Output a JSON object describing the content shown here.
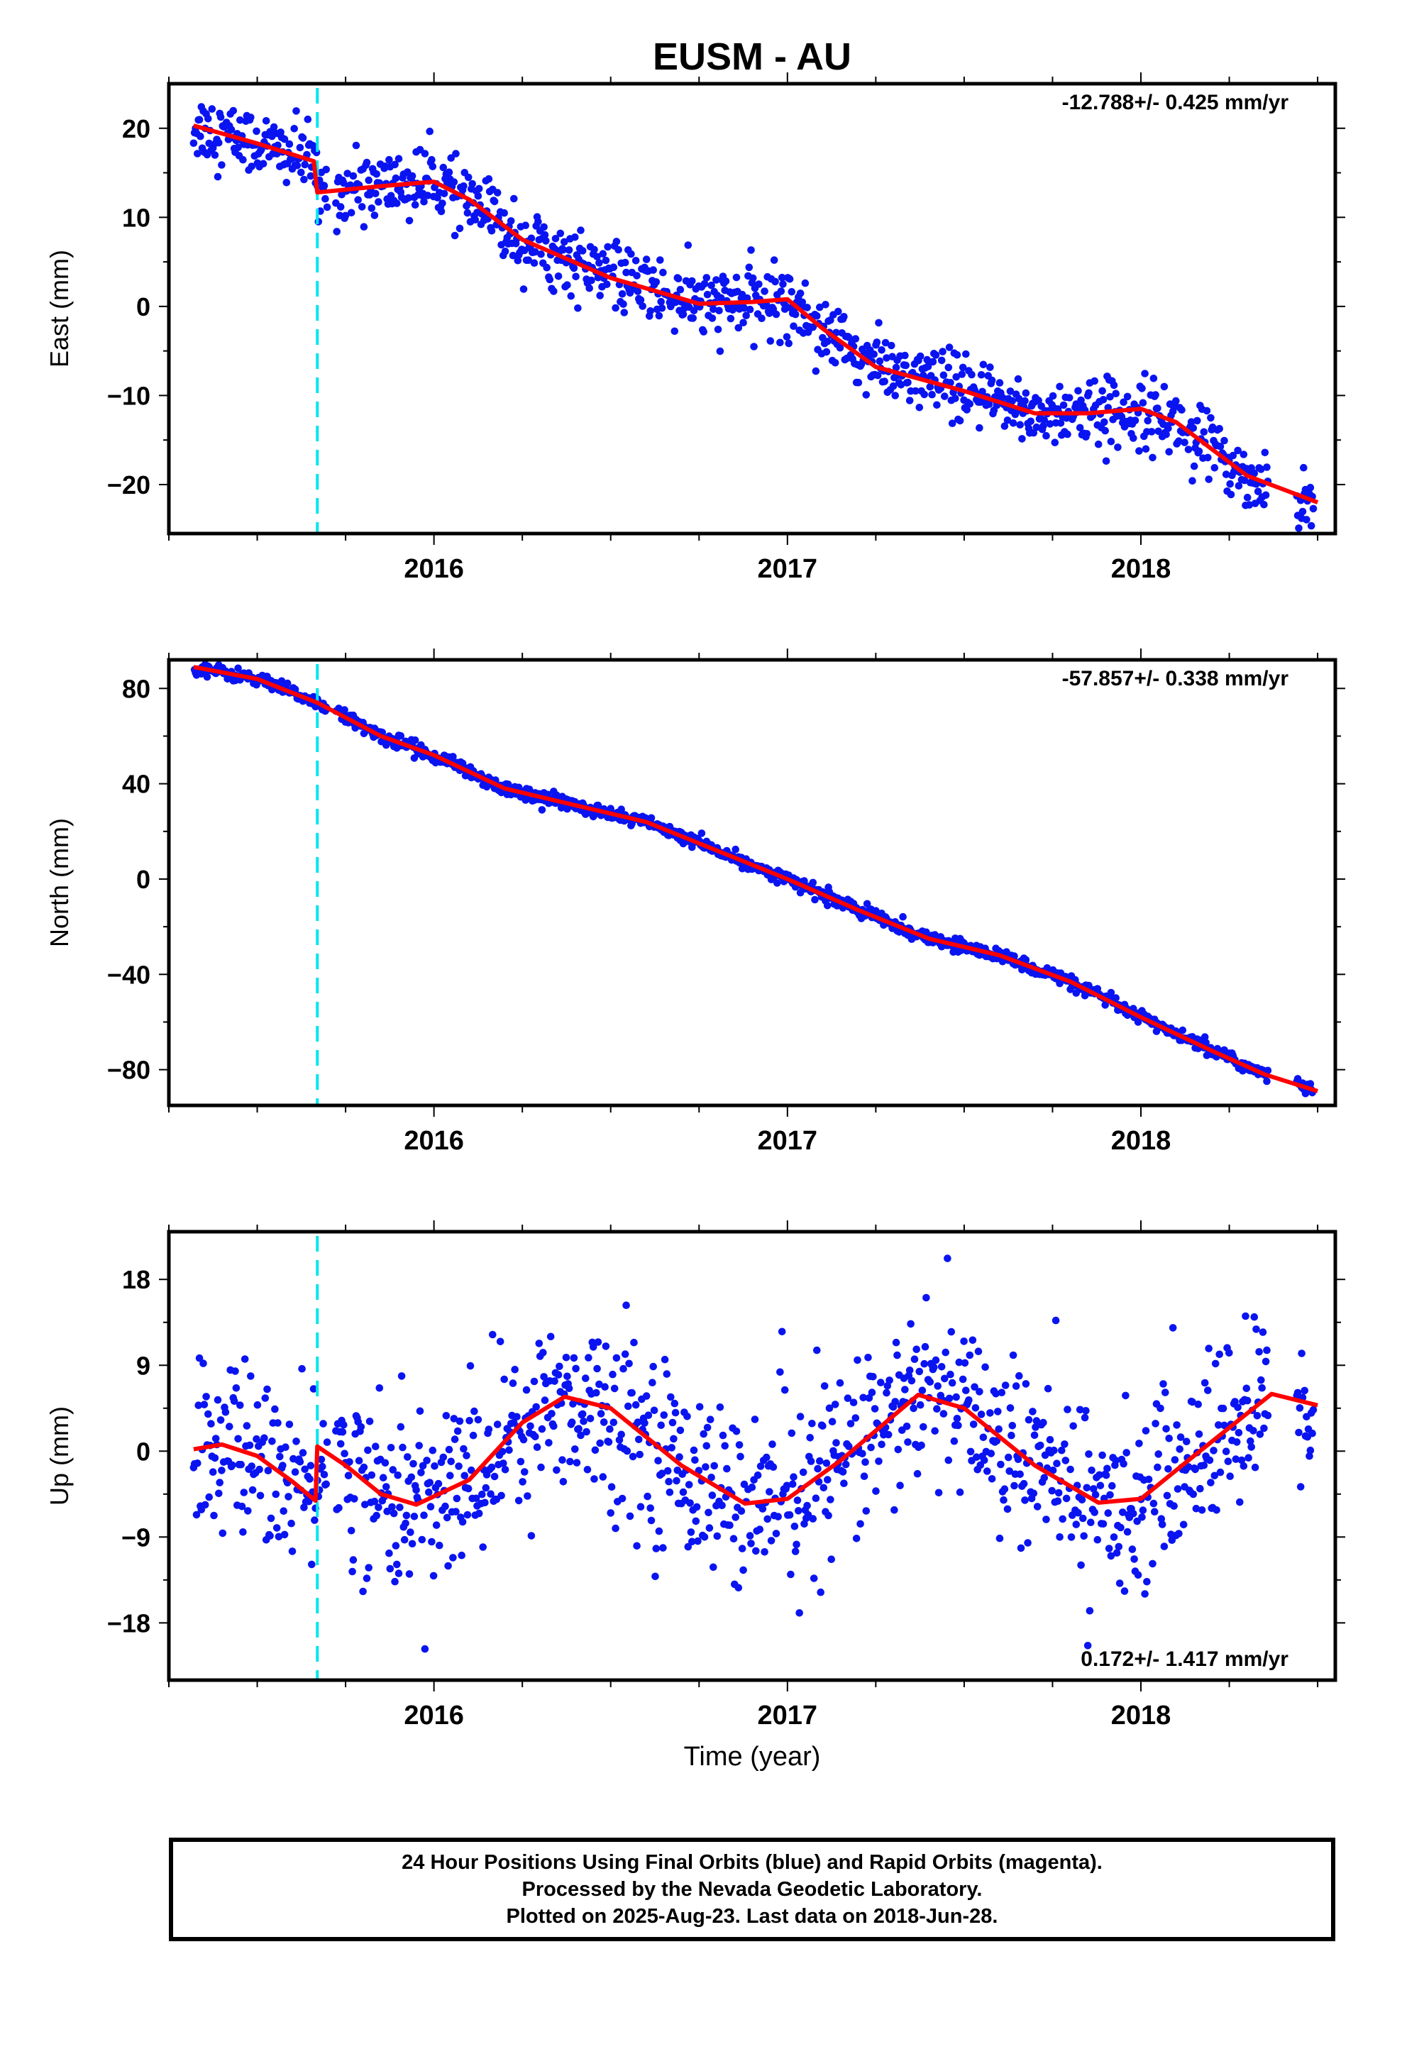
{
  "title": "EUSM - AU",
  "xlabel": "Time (year)",
  "caption": {
    "line1": "24 Hour Positions Using Final Orbits (blue) and Rapid Orbits (magenta).",
    "line2": "Processed by the Nevada Geodetic Laboratory.",
    "line3": "Plotted on 2025-Aug-23. Last data on 2018-Jun-28."
  },
  "colors": {
    "points": "#0a14f0",
    "model": "#ff0000",
    "event_line": "#00e5ee",
    "frame": "#000000"
  },
  "chart_data": [
    {
      "type": "scatter",
      "component": "east",
      "ylabel": "East (mm)",
      "rate_label": "-12.788+/- 0.425 mm/yr",
      "rate_position": "top-right",
      "xlim": [
        2015.25,
        2018.55
      ],
      "ylim": [
        -25.5,
        25
      ],
      "yticks": [
        -20,
        -10,
        0,
        10,
        20
      ],
      "ytick_labels": [
        "−20",
        "−10",
        "0",
        "10",
        "20"
      ],
      "xticks": [
        2016,
        2017,
        2018
      ],
      "xtick_labels": [
        "2016",
        "2017",
        "2018"
      ],
      "event_line_x": 2015.67,
      "trend": {
        "rate": -12.788,
        "offset_at_event": -3.5,
        "annual_amplitude": 1.9,
        "annual_phase": 0.1
      },
      "model_curve": {
        "x": [
          2015.32,
          2015.5,
          2015.66,
          2015.67,
          2015.85,
          2016.0,
          2016.1,
          2016.25,
          2016.5,
          2016.75,
          2016.9,
          2017.0,
          2017.1,
          2017.25,
          2017.5,
          2017.7,
          2017.85,
          2018.0,
          2018.1,
          2018.3,
          2018.5
        ],
        "y": [
          20.3,
          18.3,
          16.3,
          12.8,
          13.5,
          14.0,
          12.0,
          7.5,
          3.2,
          0.3,
          0.5,
          0.8,
          -2.5,
          -6.8,
          -9.5,
          -12.0,
          -12.0,
          -11.5,
          -13.0,
          -19.0,
          -22.0
        ]
      }
    },
    {
      "type": "scatter",
      "component": "north",
      "ylabel": "North (mm)",
      "rate_label": "-57.857+/- 0.338 mm/yr",
      "rate_position": "top-right",
      "xlim": [
        2015.25,
        2018.55
      ],
      "ylim": [
        -95,
        92
      ],
      "yticks": [
        -80,
        -40,
        0,
        40,
        80
      ],
      "ytick_labels": [
        "−80",
        "−40",
        "0",
        "40",
        "80"
      ],
      "xticks": [
        2016,
        2017,
        2018
      ],
      "xtick_labels": [
        "2016",
        "2017",
        "2018"
      ],
      "event_line_x": 2015.67,
      "trend": {
        "rate": -57.857,
        "offset_at_event": 0,
        "annual_amplitude": 2.5,
        "annual_phase": 0.3
      },
      "model_curve": {
        "x": [
          2015.32,
          2015.5,
          2015.67,
          2015.85,
          2016.0,
          2016.2,
          2016.4,
          2016.6,
          2016.8,
          2017.0,
          2017.2,
          2017.4,
          2017.6,
          2017.8,
          2018.0,
          2018.2,
          2018.35,
          2018.5
        ],
        "y": [
          89,
          84,
          74,
          60,
          52,
          38,
          31,
          24,
          12,
          0,
          -13,
          -25,
          -32,
          -43,
          -58,
          -72,
          -82,
          -89
        ]
      }
    },
    {
      "type": "scatter",
      "component": "up",
      "ylabel": "Up (mm)",
      "rate_label": "0.172+/- 1.417 mm/yr",
      "rate_position": "bottom-right",
      "xlim": [
        2015.25,
        2018.55
      ],
      "ylim": [
        -24,
        23
      ],
      "yticks": [
        -18,
        -9,
        0,
        9,
        18
      ],
      "ytick_labels": [
        "−18",
        "−9",
        "0",
        "9",
        "18"
      ],
      "xticks": [
        2016,
        2017,
        2018
      ],
      "xtick_labels": [
        "2016",
        "2017",
        "2018"
      ],
      "event_line_x": 2015.67,
      "trend": {
        "rate": 0.172,
        "offset_at_event": 5.5,
        "annual_amplitude": 5.6,
        "annual_phase": 0.13
      },
      "model_curve": {
        "x": [
          2015.32,
          2015.4,
          2015.5,
          2015.6,
          2015.665,
          2015.67,
          2015.75,
          2015.85,
          2015.95,
          2016.1,
          2016.25,
          2016.37,
          2016.5,
          2016.7,
          2016.88,
          2017.0,
          2017.15,
          2017.37,
          2017.5,
          2017.7,
          2017.88,
          2018.0,
          2018.15,
          2018.37,
          2018.5
        ],
        "y": [
          0.2,
          0.7,
          -0.5,
          -3.2,
          -5.2,
          0.5,
          -1.5,
          -4.5,
          -5.6,
          -3.0,
          3.0,
          5.7,
          4.5,
          -1.5,
          -5.5,
          -5.0,
          -1.0,
          5.9,
          4.5,
          -1.5,
          -5.4,
          -5.0,
          -0.5,
          6.0,
          4.8
        ]
      }
    }
  ]
}
